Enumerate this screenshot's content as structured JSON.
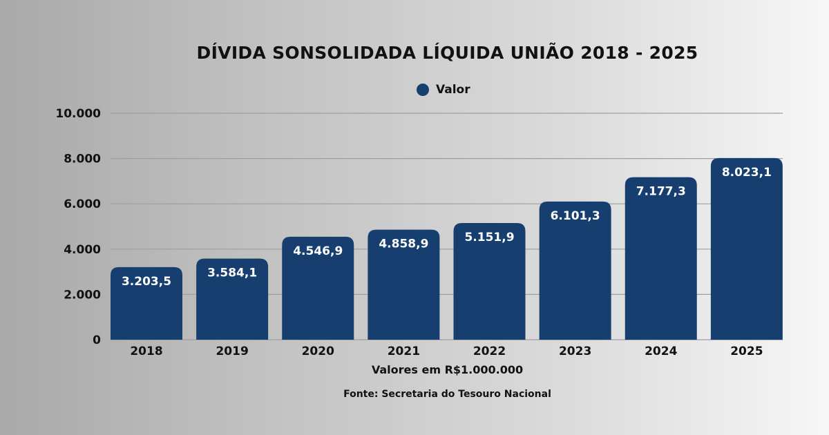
{
  "chart_data": {
    "type": "bar",
    "title": "DÍVIDA SONSOLIDADA LÍQUIDA UNIÃO 2018 - 2025",
    "categories": [
      "2018",
      "2019",
      "2020",
      "2021",
      "2022",
      "2023",
      "2024",
      "2025"
    ],
    "series": [
      {
        "name": "Valor",
        "values": [
          3203.5,
          3584.1,
          4546.9,
          4858.9,
          5151.9,
          6101.3,
          7177.3,
          8023.1
        ],
        "labels": [
          "3.203,5",
          "3.584,1",
          "4.546,9",
          "4.858,9",
          "5.151,9",
          "6.101,3",
          "7.177,3",
          "8.023,1"
        ]
      }
    ],
    "ylim": [
      0,
      10000
    ],
    "yticks": [
      0,
      2000,
      4000,
      6000,
      8000,
      10000
    ],
    "ytick_labels": [
      "0",
      "2.000",
      "4.000",
      "6.000",
      "8.000",
      "10.000"
    ],
    "xlabel": "Valores em R$1.000.000",
    "grid": true,
    "legend": "top",
    "colors": {
      "bar": "#163f70",
      "label": "#ffffff"
    }
  },
  "source": "Fonte: Secretaria do Tesouro Nacional"
}
